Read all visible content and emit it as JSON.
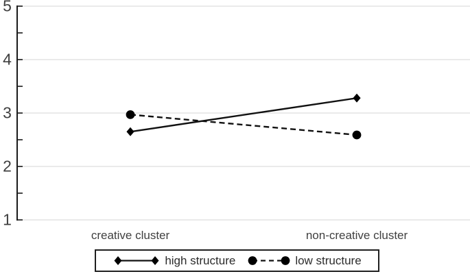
{
  "chart_data": {
    "type": "line",
    "title": "",
    "xlabel": "",
    "ylabel": "",
    "categories": [
      "creative cluster",
      "non-creative cluster"
    ],
    "series": [
      {
        "name": "high structure",
        "values": [
          2.65,
          3.28
        ],
        "line_style": "solid",
        "marker": "diamond",
        "color": "#000000"
      },
      {
        "name": "low structure",
        "values": [
          2.97,
          2.59
        ],
        "line_style": "dashed",
        "marker": "circle",
        "color": "#000000"
      }
    ],
    "ylim": [
      1,
      5
    ],
    "yticks": [
      1,
      2,
      3,
      4,
      5
    ],
    "minor_tick_step": 0.5,
    "grid": "horizontal-major",
    "legend_position": "bottom-center",
    "colors": {
      "axis": "#1a1a1a",
      "gridline": "#e4e4e4",
      "tick_label": "#3f3f3f",
      "legend_text": "#2b2b2b",
      "background": "#ffffff"
    }
  }
}
